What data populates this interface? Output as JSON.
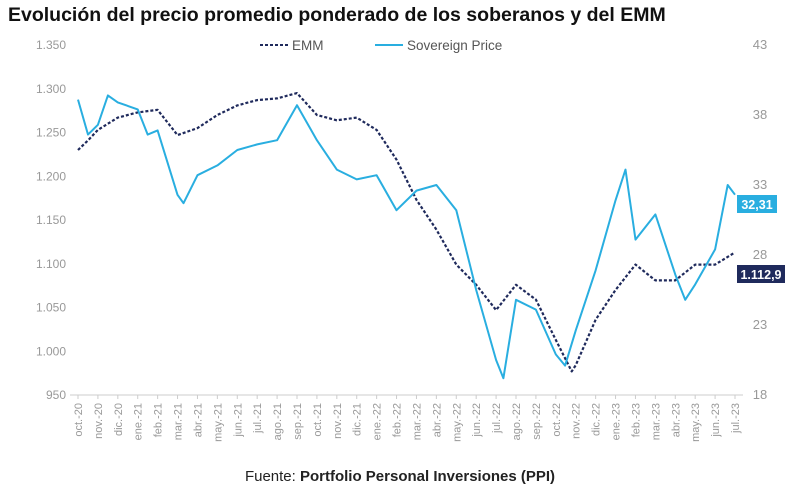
{
  "chart_data": {
    "type": "line",
    "title": "Evolución del precio promedio ponderado de los soberanos y del EMM",
    "source_prefix": "Fuente:",
    "source": "Portfolio Personal Inversiones (PPI)",
    "legend_placement": "top",
    "grid": false,
    "x_tick_labels": [
      "oct.-20",
      "nov.-20",
      "dic.-20",
      "ene.-21",
      "feb.-21",
      "mar.-21",
      "abr.-21",
      "may.-21",
      "jun.-21",
      "jul.-21",
      "ago.-21",
      "sep.-21",
      "oct.-21",
      "nov.-21",
      "dic.-21",
      "ene.-22",
      "feb.-22",
      "mar.-22",
      "abr.-22",
      "may.-22",
      "jun.-22",
      "jul.-22",
      "ago.-22",
      "sep.-22",
      "oct.-22",
      "nov.-22",
      "dic.-22",
      "ene.-23",
      "feb.-23",
      "mar.-23",
      "abr.-23",
      "may.-23",
      "jun.-23",
      "jul.-23"
    ],
    "y_left": {
      "ylim": [
        950,
        1350
      ],
      "ticks": [
        "950",
        "1.000",
        "1.050",
        "1.100",
        "1.150",
        "1.200",
        "1.250",
        "1.300",
        "1.350"
      ]
    },
    "y_right": {
      "ylim": [
        18,
        43
      ],
      "ticks": [
        "18",
        "23",
        "28",
        "33",
        "38",
        "43"
      ]
    },
    "series": [
      {
        "name": "EMM",
        "axis": "left",
        "color": "#1f2a5c",
        "style": "dashed",
        "end_label": "1.112,9",
        "x": [
          "2020-10-01",
          "2020-10-16",
          "2020-11-01",
          "2020-12-01",
          "2021-01-01",
          "2021-02-01",
          "2021-03-01",
          "2021-04-01",
          "2021-05-01",
          "2021-06-01",
          "2021-07-01",
          "2021-08-01",
          "2021-09-01",
          "2021-10-01",
          "2021-11-01",
          "2021-12-01",
          "2022-01-01",
          "2022-02-01",
          "2022-03-01",
          "2022-04-01",
          "2022-05-01",
          "2022-06-01",
          "2022-07-01",
          "2022-08-01",
          "2022-09-01",
          "2022-10-01",
          "2022-10-25",
          "2022-11-01",
          "2022-12-01",
          "2023-01-01",
          "2023-02-01",
          "2023-03-01",
          "2023-04-01",
          "2023-05-01",
          "2023-06-01",
          "2023-07-01"
        ],
        "y": [
          1230,
          1241,
          1253,
          1267,
          1273,
          1276,
          1247,
          1255,
          1270,
          1281,
          1287,
          1289,
          1295,
          1270,
          1264,
          1267,
          1253,
          1219,
          1173,
          1139,
          1099,
          1076,
          1047,
          1076,
          1059,
          1013,
          977,
          984,
          1036,
          1070,
          1099,
          1081,
          1081,
          1099,
          1099,
          1113
        ]
      },
      {
        "name": "Sovereign Price",
        "axis": "right",
        "color": "#29aee0",
        "style": "solid",
        "end_label": "32,31",
        "x": [
          "2020-10-01",
          "2020-10-16",
          "2020-11-01",
          "2020-11-16",
          "2020-12-01",
          "2021-01-01",
          "2021-01-16",
          "2021-02-01",
          "2021-03-01",
          "2021-03-10",
          "2021-04-01",
          "2021-05-01",
          "2021-06-01",
          "2021-07-01",
          "2021-08-01",
          "2021-09-01",
          "2021-10-01",
          "2021-11-01",
          "2021-12-01",
          "2022-01-01",
          "2022-02-01",
          "2022-03-01",
          "2022-04-01",
          "2022-05-01",
          "2022-06-01",
          "2022-07-01",
          "2022-07-12",
          "2022-08-01",
          "2022-09-01",
          "2022-10-01",
          "2022-10-15",
          "2022-11-01",
          "2022-12-01",
          "2023-01-01",
          "2023-01-16",
          "2023-02-01",
          "2023-03-01",
          "2023-04-01",
          "2023-04-16",
          "2023-05-01",
          "2023-06-01",
          "2023-06-20",
          "2023-07-01"
        ],
        "y": [
          39.1,
          36.6,
          37.3,
          39.4,
          38.9,
          38.4,
          36.6,
          36.9,
          32.3,
          31.7,
          33.7,
          34.4,
          35.5,
          35.9,
          36.2,
          38.7,
          36.2,
          34.1,
          33.4,
          33.7,
          31.2,
          32.6,
          33.0,
          31.2,
          25.5,
          20.5,
          19.2,
          24.8,
          24.1,
          20.9,
          20.1,
          22.6,
          26.9,
          31.9,
          34.1,
          29.1,
          30.9,
          26.6,
          24.8,
          25.9,
          28.4,
          33.0,
          32.31
        ]
      }
    ]
  }
}
